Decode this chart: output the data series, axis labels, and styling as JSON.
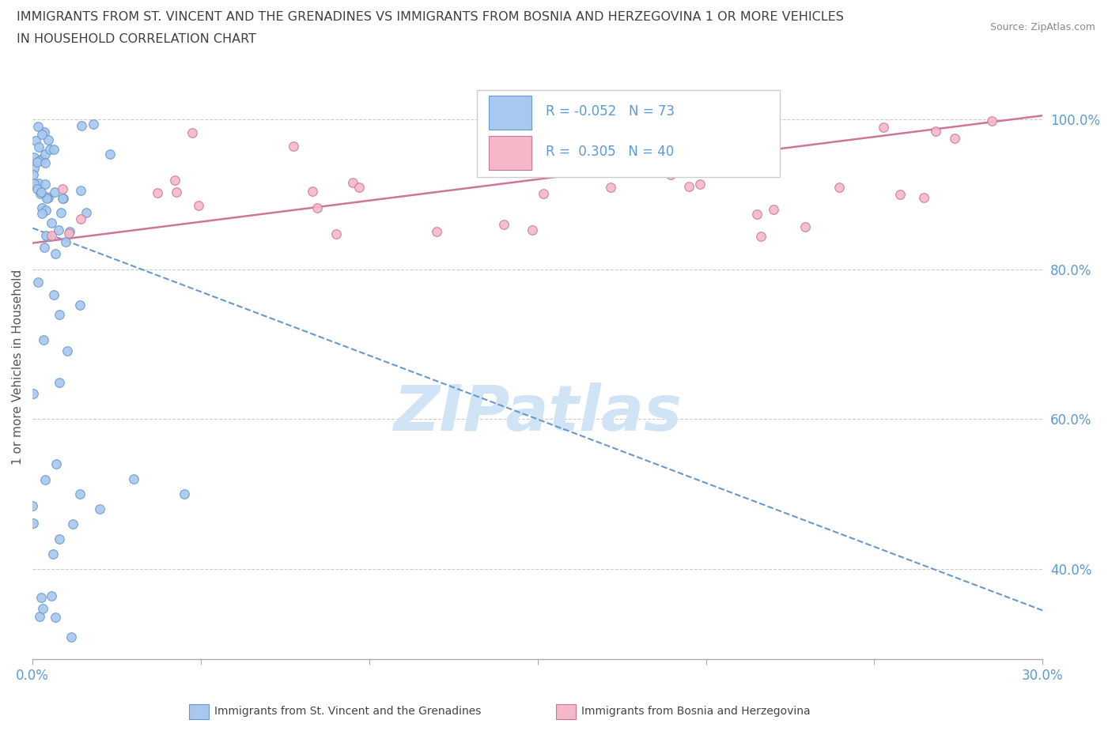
{
  "title_line1": "IMMIGRANTS FROM ST. VINCENT AND THE GRENADINES VS IMMIGRANTS FROM BOSNIA AND HERZEGOVINA 1 OR MORE VEHICLES",
  "title_line2": "IN HOUSEHOLD CORRELATION CHART",
  "source_text": "Source: ZipAtlas.com",
  "ylabel": "1 or more Vehicles in Household",
  "xmin": 0.0,
  "xmax": 0.3,
  "ymin": 0.28,
  "ymax": 1.06,
  "series1_color": "#a8c8f0",
  "series1_edge": "#6699cc",
  "series1_label": "Immigrants from St. Vincent and the Grenadines",
  "series1_R": "-0.052",
  "series1_N": "73",
  "series1_trend_color": "#6699cc",
  "series2_color": "#f5b8c8",
  "series2_edge": "#cc7799",
  "series2_label": "Immigrants from Bosnia and Herzegovina",
  "series2_R": "0.305",
  "series2_N": "40",
  "series2_trend_color": "#cc7799",
  "watermark": "ZIPatlas",
  "watermark_color": "#d0e4f5",
  "tick_label_color": "#5b9bd5",
  "grid_color": "#cccccc",
  "title_color": "#404040",
  "legend_R_color": "#5b9bd5",
  "legend_text_color": "#222222",
  "ytick_vals": [
    0.4,
    0.6,
    0.8,
    1.0
  ],
  "ytick_labs": [
    "40.0%",
    "60.0%",
    "80.0%",
    "100.0%"
  ],
  "xtick_vals": [
    0.0,
    0.05,
    0.1,
    0.15,
    0.2,
    0.25,
    0.3
  ],
  "xtick_labs": [
    "0.0%",
    "",
    "",
    "",
    "",
    "",
    "30.0%"
  ],
  "trend1_x": [
    0.0,
    0.3
  ],
  "trend1_y": [
    0.855,
    0.345
  ],
  "trend2_x": [
    0.0,
    0.3
  ],
  "trend2_y": [
    0.835,
    1.005
  ]
}
